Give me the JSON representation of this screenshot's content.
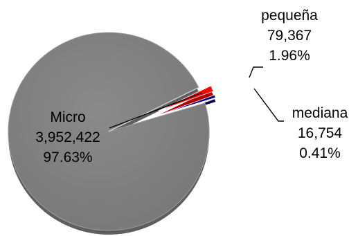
{
  "chart_data": {
    "type": "pie",
    "slices": [
      {
        "name": "Micro",
        "value": 3952422,
        "value_label": "3,952,422",
        "percent_label": "97.63%",
        "color": "#808080"
      },
      {
        "name": "pequeña",
        "value": 79367,
        "value_label": "79,367",
        "percent_label": "1.96%",
        "color": "#ff0000"
      },
      {
        "name": "mediana",
        "value": 16754,
        "value_label": "16,754",
        "percent_label": "0.41%",
        "color": "#000080"
      }
    ],
    "exploded": [
      "pequeña",
      "mediana"
    ],
    "style": "3d"
  }
}
